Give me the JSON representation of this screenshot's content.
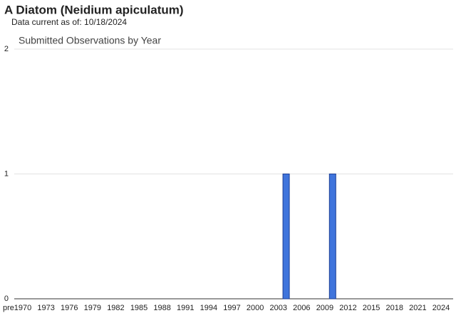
{
  "header": {
    "title": "A Diatom   (Neidium apiculatum)",
    "subtitle": "Data current as of: 10/18/2024"
  },
  "chart_data": {
    "type": "bar",
    "title": "Submitted Observations by Year",
    "categories": [
      "pre",
      "1970",
      null,
      null,
      "1973",
      null,
      null,
      "1976",
      null,
      null,
      "1979",
      null,
      null,
      "1982",
      null,
      null,
      "1985",
      null,
      null,
      "1988",
      null,
      null,
      "1991",
      null,
      null,
      "1994",
      null,
      null,
      "1997",
      null,
      null,
      "2000",
      null,
      null,
      "2003",
      null,
      null,
      "2006",
      null,
      null,
      "2009",
      null,
      null,
      "2012",
      null,
      null,
      "2015",
      null,
      null,
      "2018",
      null,
      null,
      "2021",
      null,
      null,
      "2024"
    ],
    "values": [
      0,
      0,
      0,
      0,
      0,
      0,
      0,
      0,
      0,
      0,
      0,
      0,
      0,
      0,
      0,
      0,
      0,
      0,
      0,
      0,
      0,
      0,
      0,
      0,
      0,
      0,
      0,
      0,
      0,
      0,
      0,
      0,
      0,
      0,
      0,
      1,
      0,
      0,
      0,
      0,
      0,
      1,
      0,
      0,
      0,
      0,
      0,
      0,
      0,
      0,
      0,
      0,
      0,
      0,
      0,
      0
    ],
    "color": "#3f74dc",
    "ylim": [
      0,
      2
    ],
    "yticks": [
      0,
      1,
      2
    ],
    "grid": true
  }
}
